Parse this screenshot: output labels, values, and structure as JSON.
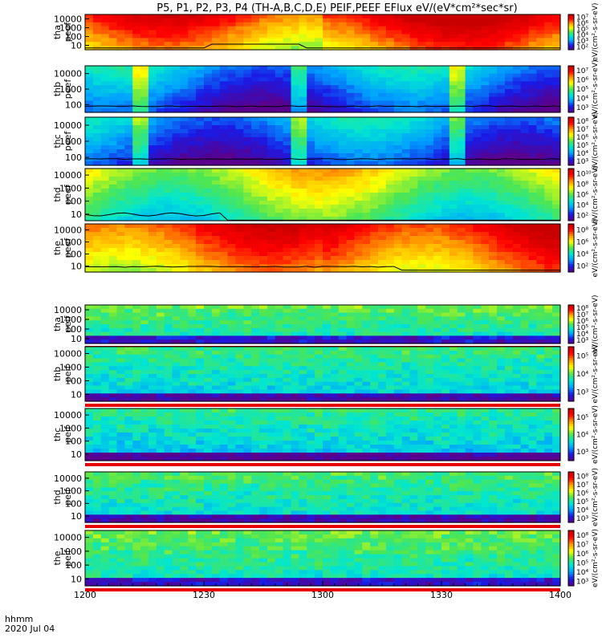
{
  "chart_data": {
    "type": "heatmap",
    "title": "P5, P1, P2, P3, P4 (TH-A,B,C,D,E) PEIF,PEEF EFlux eV/(eV*cm²*sec*sr)",
    "x_axis": {
      "range_min": [
        1200,
        1400
      ],
      "tick_labels": [
        "1200",
        "1230",
        "1300",
        "1330",
        "1400"
      ],
      "label_line1": "hhmm",
      "label_line2": "2020 Jul 04"
    },
    "panels": [
      {
        "id": "tha-peef",
        "ylabel1": "tha",
        "ylabel2": "peef",
        "yticks": [
          "10",
          "100",
          "1000",
          "10000"
        ],
        "cbar_ticks": [
          "10²",
          "10³",
          "10⁴",
          "10⁵",
          "10⁶",
          "10⁷"
        ],
        "cbar_label": "eV/(cm²-s-sr-eV)",
        "base_level": 0.78,
        "line_kind": "bump"
      },
      {
        "id": "thb-peef",
        "ylabel1": "thb",
        "ylabel2": "peef",
        "yticks": [
          "100",
          "1000",
          "10000"
        ],
        "cbar_ticks": [
          "10³",
          "10⁴",
          "10⁵",
          "10⁶",
          "10⁷"
        ],
        "cbar_label": "eV/(cm²-s-sr-eV)",
        "base_level": 0.22,
        "line_kind": "flat"
      },
      {
        "id": "thc-peef",
        "ylabel1": "thc",
        "ylabel2": "peef",
        "yticks": [
          "100",
          "1000",
          "10000"
        ],
        "cbar_ticks": [
          "10³",
          "10⁴",
          "10⁵",
          "10⁶",
          "10⁷",
          "10⁸"
        ],
        "cbar_label": "eV/(cm²-s-sr-eV)",
        "base_level": 0.22,
        "line_kind": "flat"
      },
      {
        "id": "thd-peef",
        "ylabel1": "thd",
        "ylabel2": "peef",
        "yticks": [
          "10",
          "100",
          "1000",
          "10000"
        ],
        "cbar_ticks": [
          "10²",
          "10⁴",
          "10⁶",
          "10⁸",
          "10¹⁰"
        ],
        "cbar_label": "eV/(cm²-s-sr-eV)",
        "base_level": 0.55,
        "line_kind": "hump"
      },
      {
        "id": "the-peef",
        "ylabel1": "the",
        "ylabel2": "peef",
        "yticks": [
          "10",
          "100",
          "1000",
          "10000"
        ],
        "cbar_ticks": [
          "10²",
          "10⁴",
          "10⁶",
          "10⁸"
        ],
        "cbar_label": "eV/(cm²-s-sr-eV)",
        "base_level": 0.8,
        "line_kind": "low"
      },
      {
        "id": "tha-peif",
        "ylabel1": "tha",
        "ylabel2": "peif",
        "yticks": [
          "10",
          "100",
          "1000",
          "10000"
        ],
        "cbar_ticks": [
          "10³",
          "10⁴",
          "10⁵",
          "10⁶",
          "10⁷",
          "10⁸"
        ],
        "cbar_label": "eV/(cm²-s-sr-eV)",
        "base_level": 0.45,
        "line_kind": "none"
      },
      {
        "id": "thb-peif",
        "ylabel1": "thb",
        "ylabel2": "peif",
        "yticks": [
          "10",
          "100",
          "1000",
          "10000"
        ],
        "cbar_ticks": [
          "10³",
          "10⁴",
          "10⁵"
        ],
        "cbar_label": "eV/(cm²-s-sr-eV)",
        "base_level": 0.4,
        "line_kind": "none"
      },
      {
        "id": "thc-peif",
        "ylabel1": "thc",
        "ylabel2": "peif",
        "yticks": [
          "10",
          "100",
          "1000",
          "10000"
        ],
        "cbar_ticks": [
          "10³",
          "10⁴",
          "10⁵"
        ],
        "cbar_label": "eV/(cm²-s-sr-eV)",
        "base_level": 0.38,
        "line_kind": "none"
      },
      {
        "id": "thd-peif",
        "ylabel1": "thd",
        "ylabel2": "peif",
        "yticks": [
          "10",
          "100",
          "1000",
          "10000"
        ],
        "cbar_ticks": [
          "10³",
          "10⁴",
          "10⁵",
          "10⁶",
          "10⁷",
          "10⁸"
        ],
        "cbar_label": "eV/(cm²-s-sr-eV)",
        "base_level": 0.42,
        "line_kind": "none"
      },
      {
        "id": "the-peif",
        "ylabel1": "the",
        "ylabel2": "peif",
        "yticks": [
          "10",
          "100",
          "1000",
          "10000"
        ],
        "cbar_ticks": [
          "10³",
          "10⁴",
          "10⁵",
          "10⁶",
          "10⁷",
          "10⁸"
        ],
        "cbar_label": "eV/(cm²-s-sr-eV)",
        "base_level": 0.45,
        "line_kind": "none"
      }
    ],
    "colormap": [
      "#5a008c",
      "#1a1ae6",
      "#00a0ff",
      "#00e6d2",
      "#50e650",
      "#ffff00",
      "#ff9600",
      "#ff0000",
      "#c80000"
    ]
  }
}
